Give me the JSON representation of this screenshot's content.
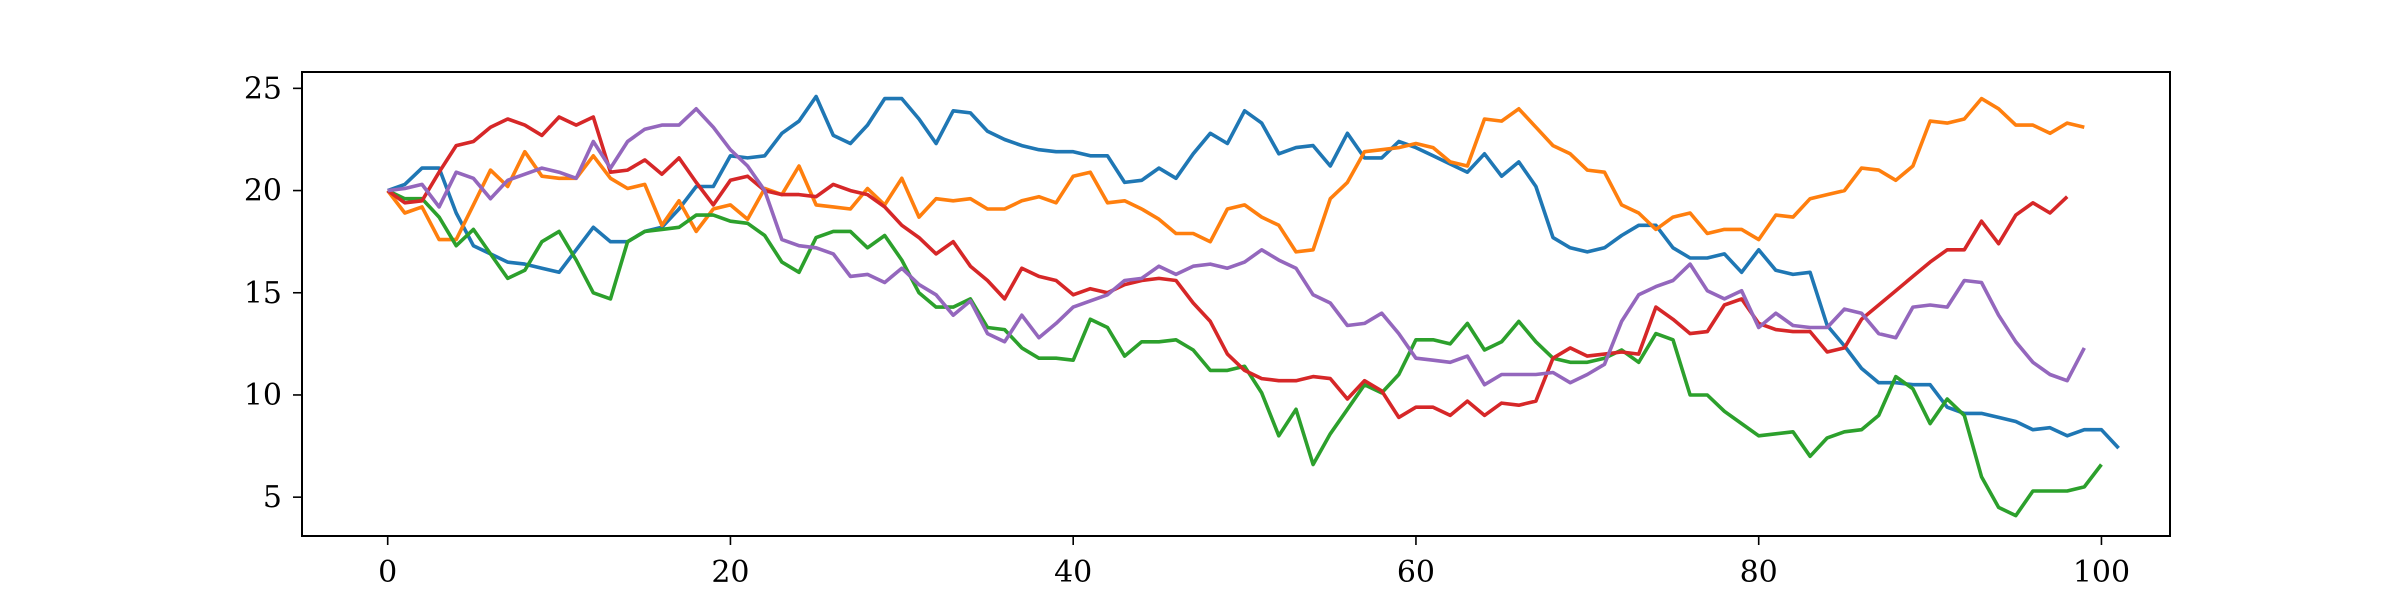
{
  "chart_data": {
    "type": "line",
    "title": "",
    "xlabel": "",
    "ylabel": "",
    "xlim": [
      -5,
      104
    ],
    "ylim": [
      3.1,
      25.8
    ],
    "xticks": [
      0,
      20,
      40,
      60,
      80,
      100
    ],
    "yticks": [
      5,
      10,
      15,
      20,
      25
    ],
    "grid": false,
    "legend": "none",
    "series": [
      {
        "color": "#1f77b4",
        "values": [
          20.0,
          20.3,
          21.1,
          21.1,
          18.9,
          17.3,
          16.9,
          16.5,
          16.4,
          16.2,
          16.0,
          17.1,
          18.2,
          17.5,
          17.5,
          18.0,
          18.2,
          19.1,
          20.2,
          20.2,
          21.7,
          21.6,
          21.7,
          22.8,
          23.4,
          24.6,
          22.7,
          22.3,
          23.2,
          24.5,
          24.5,
          23.5,
          22.3,
          23.9,
          23.8,
          22.9,
          22.5,
          22.2,
          22.0,
          21.9,
          21.9,
          21.7,
          21.7,
          20.4,
          20.5,
          21.1,
          20.6,
          21.8,
          22.8,
          22.3,
          23.9,
          23.3,
          21.8,
          22.1,
          22.2,
          21.2,
          22.8,
          21.6,
          21.6,
          22.4,
          22.1,
          21.7,
          21.3,
          20.9,
          21.8,
          20.7,
          21.4,
          20.2,
          17.7,
          17.2,
          17.0,
          17.2,
          17.8,
          18.3,
          18.3,
          17.2,
          16.7,
          16.7,
          16.9,
          16.0,
          17.1,
          16.1,
          15.9,
          16.0,
          13.4,
          12.4,
          11.3,
          10.6,
          10.6,
          10.5,
          10.5,
          9.4,
          9.1,
          9.1,
          8.9,
          8.7,
          8.3,
          8.4,
          8.0,
          8.3,
          8.3,
          7.4
        ]
      },
      {
        "color": "#ff7f0e",
        "values": [
          20.0,
          18.9,
          19.2,
          17.6,
          17.6,
          19.3,
          21.0,
          20.2,
          21.9,
          20.7,
          20.6,
          20.6,
          21.7,
          20.6,
          20.1,
          20.3,
          18.3,
          19.5,
          18.0,
          19.1,
          19.3,
          18.6,
          20.1,
          19.8,
          21.2,
          19.3,
          19.2,
          19.1,
          20.1,
          19.3,
          20.6,
          18.7,
          19.6,
          19.5,
          19.6,
          19.1,
          19.1,
          19.5,
          19.7,
          19.4,
          20.7,
          20.9,
          19.4,
          19.5,
          19.1,
          18.6,
          17.9,
          17.9,
          17.5,
          19.1,
          19.3,
          18.7,
          18.3,
          17.0,
          17.1,
          19.6,
          20.4,
          21.9,
          22.0,
          22.1,
          22.3,
          22.1,
          21.4,
          21.2,
          23.5,
          23.4,
          24.0,
          23.1,
          22.2,
          21.8,
          21.0,
          20.9,
          19.3,
          18.9,
          18.1,
          18.7,
          18.9,
          17.9,
          18.1,
          18.1,
          17.6,
          18.8,
          18.7,
          19.6,
          19.8,
          20.0,
          21.1,
          21.0,
          20.5,
          21.2,
          23.4,
          23.3,
          23.5,
          24.5,
          24.0,
          23.2,
          23.2,
          22.8,
          23.3,
          23.1
        ]
      },
      {
        "color": "#2ca02c",
        "values": [
          20.0,
          19.6,
          19.6,
          18.7,
          17.3,
          18.1,
          16.9,
          15.7,
          16.1,
          17.5,
          18.0,
          16.6,
          15.0,
          14.7,
          17.5,
          18.0,
          18.1,
          18.2,
          18.8,
          18.8,
          18.5,
          18.4,
          17.8,
          16.5,
          16.0,
          17.7,
          18.0,
          18.0,
          17.2,
          17.8,
          16.6,
          15.0,
          14.3,
          14.3,
          14.7,
          13.3,
          13.2,
          12.3,
          11.8,
          11.8,
          11.7,
          13.7,
          13.3,
          11.9,
          12.6,
          12.6,
          12.7,
          12.2,
          11.2,
          11.2,
          11.4,
          10.1,
          8.0,
          9.3,
          6.6,
          8.1,
          9.3,
          10.5,
          10.1,
          11.0,
          12.7,
          12.7,
          12.5,
          13.5,
          12.2,
          12.6,
          13.6,
          12.6,
          11.8,
          11.6,
          11.6,
          11.8,
          12.2,
          11.6,
          13.0,
          12.7,
          10.0,
          10.0,
          9.2,
          8.6,
          8.0,
          8.1,
          8.2,
          7.0,
          7.9,
          8.2,
          8.3,
          9.0,
          10.9,
          10.3,
          8.6,
          9.8,
          9.0,
          6.0,
          4.5,
          4.1,
          5.3,
          5.3,
          5.3,
          5.5,
          6.6
        ]
      },
      {
        "color": "#d62728",
        "values": [
          20.0,
          19.4,
          19.5,
          20.9,
          22.2,
          22.4,
          23.1,
          23.5,
          23.2,
          22.7,
          23.6,
          23.2,
          23.6,
          20.9,
          21.0,
          21.5,
          20.8,
          21.6,
          20.4,
          19.3,
          20.5,
          20.7,
          20.0,
          19.8,
          19.8,
          19.7,
          20.3,
          20.0,
          19.8,
          19.2,
          18.3,
          17.7,
          16.9,
          17.5,
          16.3,
          15.6,
          14.7,
          16.2,
          15.8,
          15.6,
          14.9,
          15.2,
          15.0,
          15.4,
          15.6,
          15.7,
          15.6,
          14.5,
          13.6,
          12.0,
          11.2,
          10.8,
          10.7,
          10.7,
          10.9,
          10.8,
          9.8,
          10.7,
          10.2,
          8.9,
          9.4,
          9.4,
          9.0,
          9.7,
          9.0,
          9.6,
          9.5,
          9.7,
          11.8,
          12.3,
          11.9,
          12.0,
          12.1,
          12.0,
          14.3,
          13.7,
          13.0,
          13.1,
          14.4,
          14.7,
          13.5,
          13.2,
          13.1,
          13.1,
          12.1,
          12.3,
          13.7,
          14.4,
          15.1,
          15.8,
          16.5,
          17.1,
          17.1,
          18.5,
          17.4,
          18.8,
          19.4,
          18.9,
          19.7
        ]
      },
      {
        "color": "#9467bd",
        "values": [
          20.0,
          20.1,
          20.3,
          19.2,
          20.9,
          20.6,
          19.6,
          20.5,
          20.8,
          21.1,
          20.9,
          20.6,
          22.4,
          21.1,
          22.4,
          23.0,
          23.2,
          23.2,
          24.0,
          23.1,
          22.0,
          21.2,
          20.0,
          17.6,
          17.3,
          17.2,
          16.9,
          15.8,
          15.9,
          15.5,
          16.2,
          15.4,
          14.9,
          13.9,
          14.6,
          13.0,
          12.6,
          13.9,
          12.8,
          13.5,
          14.3,
          14.6,
          14.9,
          15.6,
          15.7,
          16.3,
          15.9,
          16.3,
          16.4,
          16.2,
          16.5,
          17.1,
          16.6,
          16.2,
          14.9,
          14.5,
          13.4,
          13.5,
          14.0,
          13.0,
          11.8,
          11.7,
          11.6,
          11.9,
          10.5,
          11.0,
          11.0,
          11.0,
          11.1,
          10.6,
          11.0,
          11.5,
          13.6,
          14.9,
          15.3,
          15.6,
          16.4,
          15.1,
          14.7,
          15.1,
          13.3,
          14.0,
          13.4,
          13.3,
          13.3,
          14.2,
          14.0,
          13.0,
          12.8,
          14.3,
          14.4,
          14.3,
          15.6,
          15.5,
          13.9,
          12.6,
          11.6,
          11.0,
          10.7,
          12.3
        ]
      }
    ]
  }
}
